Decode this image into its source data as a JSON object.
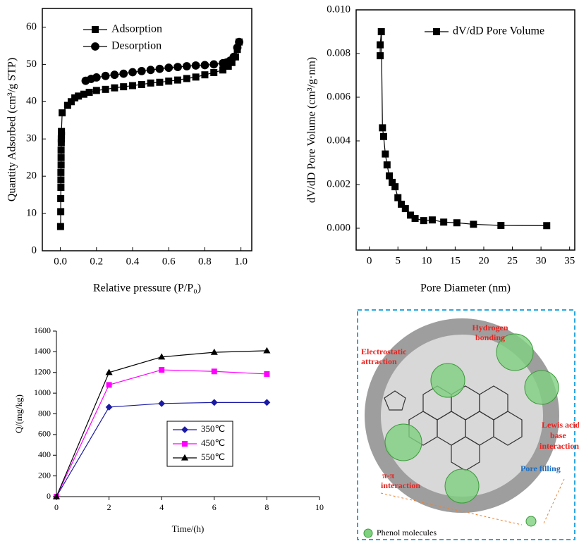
{
  "chart_data": [
    {
      "type": "line",
      "xlabel": "Relative pressure (P/P₀)",
      "ylabel": "Quantity Adsorbed (cm³/g STP)",
      "xlim": [
        -0.1,
        1.06
      ],
      "ylim": [
        0,
        65
      ],
      "xticks": [
        {
          "value": 0,
          "label": "0.0"
        },
        {
          "value": 0.2,
          "label": "0.2"
        },
        {
          "value": 0.4,
          "label": "0.4"
        },
        {
          "value": 0.6,
          "label": "0.6"
        },
        {
          "value": 0.8,
          "label": "0.8"
        },
        {
          "value": 1,
          "label": "1.0"
        }
      ],
      "yticks": [
        0,
        10,
        20,
        30,
        40,
        50,
        60
      ],
      "legend": "upper left",
      "series": [
        {
          "name": "Adsorption",
          "color": "#000000",
          "marker": "square",
          "x": [
            0.001,
            0.002,
            0.002,
            0.003,
            0.003,
            0.003,
            0.004,
            0.004,
            0.004,
            0.005,
            0.005,
            0.006,
            0.006,
            0.01,
            0.04,
            0.06,
            0.08,
            0.1,
            0.13,
            0.16,
            0.2,
            0.25,
            0.3,
            0.35,
            0.4,
            0.45,
            0.5,
            0.55,
            0.6,
            0.65,
            0.7,
            0.75,
            0.8,
            0.85,
            0.9,
            0.93,
            0.95,
            0.97,
            0.98,
            0.99
          ],
          "values": [
            6.5,
            10.5,
            14,
            17,
            19,
            21,
            23,
            25,
            27,
            29,
            30,
            31,
            32,
            37,
            39,
            40,
            41,
            41.5,
            42,
            42.5,
            43,
            43.3,
            43.7,
            44,
            44.3,
            44.6,
            45,
            45.2,
            45.5,
            45.8,
            46.2,
            46.6,
            47.2,
            47.8,
            48.5,
            49.5,
            50.5,
            52,
            54,
            56
          ]
        },
        {
          "name": "Desorption",
          "color": "#000000",
          "marker": "circle",
          "x": [
            0.99,
            0.98,
            0.96,
            0.94,
            0.92,
            0.9,
            0.85,
            0.8,
            0.75,
            0.7,
            0.65,
            0.6,
            0.55,
            0.5,
            0.45,
            0.4,
            0.35,
            0.3,
            0.25,
            0.2,
            0.17,
            0.14
          ],
          "values": [
            56,
            54.5,
            52,
            51,
            50.5,
            50.3,
            50,
            49.8,
            49.7,
            49.5,
            49.3,
            49.1,
            48.8,
            48.5,
            48.2,
            47.9,
            47.5,
            47.2,
            46.9,
            46.5,
            46.1,
            45.6
          ]
        }
      ]
    },
    {
      "type": "line",
      "xlabel": "Pore Diameter (nm)",
      "ylabel": "dV/dD Pore Volume (cm³/g·nm)",
      "xlim": [
        -2.3,
        35.9
      ],
      "ylim": [
        -0.001,
        0.01
      ],
      "xticks": [
        0,
        5,
        10,
        15,
        20,
        25,
        30,
        35
      ],
      "yticks": [
        {
          "value": 0,
          "label": "0.000"
        },
        {
          "value": 0.002,
          "label": "0.002"
        },
        {
          "value": 0.004,
          "label": "0.004"
        },
        {
          "value": 0.006,
          "label": "0.006"
        },
        {
          "value": 0.008,
          "label": "0.008"
        },
        {
          "value": 0.01,
          "label": "0.010"
        }
      ],
      "legend": "upper right",
      "series": [
        {
          "name": "dV/dD Pore Volume",
          "color": "#000000",
          "marker": "square",
          "x": [
            1.9,
            1.9,
            2.1,
            2.3,
            2.5,
            2.8,
            3.1,
            3.5,
            4,
            4.5,
            5,
            5.6,
            6.3,
            7.2,
            8,
            9.5,
            11,
            13,
            15.3,
            18.2,
            23,
            31
          ],
          "values": [
            0.0079,
            0.0084,
            0.009,
            0.0046,
            0.0042,
            0.0034,
            0.0029,
            0.0024,
            0.0021,
            0.0019,
            0.0014,
            0.0011,
            0.0009,
            0.0006,
            0.00045,
            0.00035,
            0.00038,
            0.00028,
            0.00025,
            0.00018,
            0.00013,
            0.00012
          ]
        }
      ]
    },
    {
      "type": "line",
      "xlabel": "Time/(h)",
      "ylabel": "Q/(mg/kg)",
      "xlim": [
        0,
        10
      ],
      "ylim": [
        0,
        1600
      ],
      "xticks": [
        0,
        2,
        4,
        6,
        8,
        10
      ],
      "yticks": [
        0,
        200,
        400,
        600,
        800,
        1000,
        1200,
        1400,
        1600
      ],
      "legend": "lower center",
      "series": [
        {
          "name": "350℃",
          "color": "#1a1aa6",
          "marker": "diamond",
          "x": [
            0,
            2,
            4,
            6,
            8
          ],
          "values": [
            0,
            865,
            900,
            910,
            910
          ]
        },
        {
          "name": "450℃",
          "color": "#ff00ff",
          "marker": "square",
          "x": [
            0,
            2,
            4,
            6,
            8
          ],
          "values": [
            0,
            1080,
            1225,
            1210,
            1185
          ]
        },
        {
          "name": "550℃",
          "color": "#000000",
          "marker": "triangle",
          "x": [
            0,
            2,
            4,
            6,
            8
          ],
          "values": [
            0,
            1200,
            1350,
            1395,
            1410
          ]
        }
      ]
    }
  ],
  "diagram": {
    "labels": [
      "Hydrogen",
      "bonding",
      "Electrostatic",
      "attraction",
      "Lewis acid",
      "base",
      "interaction",
      "Pore filling",
      "π-π",
      "interaction"
    ],
    "legend": "Phenol molecules"
  }
}
